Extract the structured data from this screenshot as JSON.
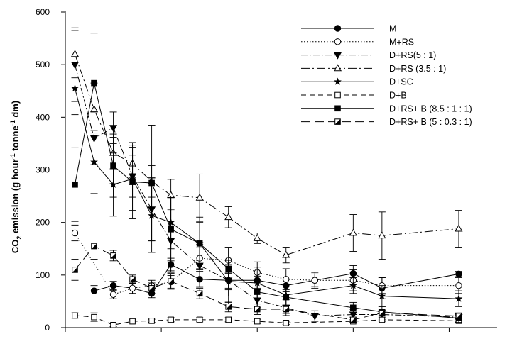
{
  "chart_data": {
    "type": "line",
    "title": "",
    "ylabel": {
      "pre": "CO",
      "sub": "2",
      "mid": " emission (g hour",
      "sup1": "-1",
      "mid2": " tonne",
      "sup2": "-1",
      "post": " dm)"
    },
    "xlabel": "",
    "ylim": [
      0,
      600
    ],
    "yticks": [
      0,
      100,
      200,
      300,
      400,
      500,
      600
    ],
    "xlim": [
      0,
      45
    ],
    "xticks": [
      0,
      10,
      20,
      30,
      40
    ],
    "xtick_labels_shown": false,
    "grid": false,
    "legend_position": "top-right",
    "x": [
      1,
      3,
      5,
      7,
      9,
      11,
      14,
      17,
      20,
      23,
      26,
      30,
      33,
      37,
      41
    ],
    "series": [
      {
        "name": "M",
        "line": "solid",
        "marker": "circle-filled",
        "values": [
          null,
          70,
          80,
          75,
          65,
          120,
          92,
          90,
          90,
          80,
          90,
          103,
          75,
          null,
          102
        ],
        "errors": [
          null,
          10,
          8,
          10,
          8,
          12,
          15,
          15,
          15,
          12,
          12,
          15,
          20,
          null,
          5
        ]
      },
      {
        "name": "M+RS",
        "line": "dotted",
        "marker": "circle-open",
        "values": [
          180,
          null,
          63,
          75,
          80,
          87,
          132,
          128,
          105,
          92,
          90,
          90,
          80,
          null,
          80
        ],
        "errors": [
          15,
          null,
          8,
          10,
          10,
          12,
          20,
          25,
          20,
          20,
          15,
          20,
          15,
          null,
          15
        ]
      },
      {
        "name": "D+RS(5 : 1)",
        "line": "dashdot",
        "marker": "triangle-down-filled",
        "values": [
          500,
          360,
          380,
          288,
          225,
          165,
          118,
          90,
          52,
          38,
          22,
          25,
          25,
          null,
          20
        ],
        "errors": [
          70,
          50,
          30,
          40,
          60,
          60,
          40,
          30,
          20,
          15,
          10,
          10,
          10,
          null,
          8
        ]
      },
      {
        "name": "D+RS (3.5 : 1)",
        "line": "dashdotlong",
        "marker": "triangle-up-open",
        "values": [
          520,
          415,
          332,
          312,
          278,
          252,
          247,
          210,
          170,
          138,
          null,
          180,
          175,
          null,
          188
        ],
        "errors": [
          45,
          50,
          30,
          40,
          30,
          30,
          45,
          20,
          10,
          15,
          null,
          35,
          45,
          null,
          35
        ]
      },
      {
        "name": "D+SC",
        "line": "solid",
        "marker": "star",
        "values": [
          455,
          315,
          272,
          283,
          213,
          200,
          160,
          88,
          85,
          62,
          null,
          80,
          60,
          null,
          55
        ],
        "errors": [
          50,
          60,
          60,
          60,
          70,
          50,
          40,
          40,
          30,
          20,
          null,
          15,
          20,
          null,
          15
        ]
      },
      {
        "name": "D+B",
        "line": "dashed",
        "marker": "square-open",
        "values": [
          23,
          20,
          5,
          12,
          13,
          15,
          15,
          15,
          12,
          9,
          null,
          12,
          15,
          null,
          13
        ],
        "errors": [
          5,
          8,
          3,
          3,
          3,
          4,
          4,
          4,
          4,
          3,
          null,
          3,
          3,
          null,
          3
        ]
      },
      {
        "name": "D+RS+ B (8.5 : 1 : 1)",
        "line": "solid",
        "marker": "square-filled",
        "values": [
          272,
          465,
          308,
          277,
          275,
          187,
          160,
          112,
          68,
          58,
          null,
          38,
          30,
          null,
          18
        ],
        "errors": [
          70,
          95,
          60,
          70,
          110,
          60,
          50,
          40,
          30,
          25,
          null,
          10,
          10,
          null,
          8
        ]
      },
      {
        "name": "D+RS+ B (5 : 0.3 : 1)",
        "line": "longdash",
        "marker": "square-half",
        "values": [
          110,
          155,
          137,
          92,
          75,
          88,
          65,
          40,
          35,
          35,
          null,
          15,
          28,
          null,
          22
        ],
        "errors": [
          20,
          25,
          10,
          8,
          10,
          15,
          10,
          10,
          10,
          8,
          null,
          5,
          5,
          null,
          5
        ]
      }
    ]
  }
}
